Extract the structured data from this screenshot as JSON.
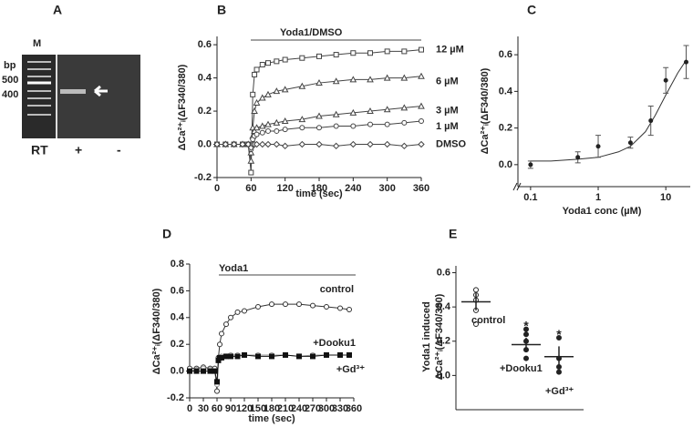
{
  "gel": {
    "panel": "A",
    "lane_marker": "M",
    "unit": "bp",
    "sizes": [
      500,
      400
    ],
    "row_label": "RT",
    "lanes": [
      "+",
      "-"
    ]
  },
  "chart_data": [
    {
      "panel": "B",
      "type": "line",
      "treatment": "Yoda1/DMSO",
      "xlabel": "time (sec)",
      "ylabel": "ΔCa²⁺ᵢ(ΔF340/380)",
      "x": [
        0,
        15,
        30,
        45,
        55,
        60,
        63,
        66,
        70,
        80,
        90,
        105,
        120,
        150,
        180,
        210,
        240,
        270,
        300,
        330,
        360
      ],
      "xlim": [
        0,
        360
      ],
      "xticks": [
        0,
        60,
        120,
        180,
        240,
        300,
        360
      ],
      "ylim": [
        -0.2,
        0.65
      ],
      "yticks": [
        -0.2,
        {
          "value": 0,
          "label": "0.0"
        },
        0.2,
        0.4,
        0.6
      ],
      "series": [
        {
          "name": "12 µM",
          "color": "#444",
          "marker": "square",
          "values": [
            0,
            0,
            0,
            0,
            0,
            -0.17,
            0.3,
            0.42,
            0.45,
            0.48,
            0.49,
            0.5,
            0.51,
            0.52,
            0.53,
            0.54,
            0.55,
            0.55,
            0.56,
            0.56,
            0.57
          ]
        },
        {
          "name": "6 µM",
          "color": "#444",
          "marker": "triangle",
          "values": [
            0,
            0,
            0,
            0,
            0,
            -0.1,
            0.1,
            0.2,
            0.25,
            0.28,
            0.3,
            0.32,
            0.33,
            0.35,
            0.37,
            0.38,
            0.39,
            0.39,
            0.4,
            0.4,
            0.41
          ]
        },
        {
          "name": "3 µM",
          "color": "#444",
          "marker": "triangle",
          "values": [
            0,
            0,
            0,
            0,
            0,
            -0.05,
            0.05,
            0.08,
            0.1,
            0.11,
            0.12,
            0.13,
            0.14,
            0.15,
            0.17,
            0.18,
            0.19,
            0.2,
            0.21,
            0.22,
            0.23
          ]
        },
        {
          "name": "1 µM",
          "color": "#444",
          "marker": "circle",
          "values": [
            0,
            0,
            0,
            0,
            0,
            -0.03,
            0.03,
            0.05,
            0.06,
            0.07,
            0.08,
            0.08,
            0.09,
            0.1,
            0.1,
            0.11,
            0.11,
            0.12,
            0.12,
            0.13,
            0.14
          ]
        },
        {
          "name": "DMSO",
          "color": "#444",
          "marker": "diamond",
          "values": [
            0,
            0,
            0,
            0,
            0,
            -0.02,
            0,
            0,
            0,
            0,
            0,
            0,
            -0.01,
            0,
            0,
            -0.01,
            0,
            0,
            0,
            -0.01,
            0
          ]
        }
      ]
    },
    {
      "panel": "C",
      "type": "scatter",
      "xscale": "log",
      "xlabel": "Yoda1 conc (µM)",
      "ylabel": "ΔCa²⁺ᵢ(ΔF340/380)",
      "x": [
        0.1,
        0.5,
        1,
        3,
        6,
        10,
        20
      ],
      "values": [
        0,
        0.04,
        0.1,
        0.12,
        0.24,
        0.46,
        0.56
      ],
      "errors": [
        0.02,
        0.03,
        0.06,
        0.03,
        0.08,
        0.07,
        0.09
      ],
      "fit": {
        "x": [
          0.1,
          0.2,
          0.5,
          1,
          2,
          3,
          5,
          7,
          10,
          15,
          20
        ],
        "values": [
          0.02,
          0.02,
          0.03,
          0.04,
          0.07,
          0.1,
          0.18,
          0.27,
          0.38,
          0.5,
          0.57
        ]
      },
      "xlim": [
        0.065,
        23
      ],
      "xticks": [
        0.1,
        1,
        10
      ],
      "ylim": [
        -0.12,
        0.7
      ],
      "yticks": [
        {
          "value": 0,
          "label": "0.0"
        },
        0.2,
        0.4,
        0.6
      ],
      "color": "#222"
    },
    {
      "panel": "D",
      "type": "line",
      "treatment": "Yoda1",
      "xlabel": "time (sec)",
      "ylabel": "ΔCa²⁺ᵢ(ΔF340/380)",
      "x": [
        0,
        15,
        30,
        45,
        55,
        60,
        63,
        66,
        70,
        80,
        90,
        105,
        120,
        150,
        180,
        210,
        240,
        270,
        300,
        330,
        350
      ],
      "xlim": [
        0,
        360
      ],
      "xticks": [
        0,
        30,
        60,
        90,
        120,
        150,
        180,
        210,
        240,
        270,
        300,
        330,
        360
      ],
      "ylim": [
        -0.2,
        0.8
      ],
      "yticks": [
        -0.2,
        {
          "value": 0,
          "label": "0.0"
        },
        0.2,
        0.4,
        0.6,
        0.8
      ],
      "series": [
        {
          "name": "control",
          "color": "#333",
          "marker": "circle",
          "values": [
            0.02,
            0.02,
            0.03,
            0.02,
            0.02,
            -0.15,
            0.1,
            0.2,
            0.28,
            0.35,
            0.4,
            0.44,
            0.45,
            0.48,
            0.5,
            0.5,
            0.5,
            0.49,
            0.48,
            0.47,
            0.46
          ]
        },
        {
          "name": "+Dooku1",
          "color": "#999",
          "marker": "circle",
          "values": [
            0,
            0.01,
            0.02,
            0.01,
            0,
            -0.1,
            0.08,
            0.1,
            0.11,
            0.11,
            0.12,
            0.12,
            0.12,
            0.12,
            0.12,
            0.12,
            0.11,
            0.12,
            0.12,
            0.12,
            0.12
          ]
        },
        {
          "name": "+Gd³⁺",
          "color": "#111",
          "marker": "square-filled",
          "values": [
            0,
            0,
            0,
            0,
            0,
            -0.08,
            0.08,
            0.1,
            0.1,
            0.11,
            0.11,
            0.11,
            0.12,
            0.11,
            0.11,
            0.12,
            0.11,
            0.11,
            0.12,
            0.12,
            0.12
          ]
        }
      ]
    },
    {
      "panel": "E",
      "type": "dot",
      "ylabel_lines": [
        "Yoda1 induced",
        "ΔCa²⁺ᵢ(ΔF340/380)"
      ],
      "categories": [
        "control",
        "+Dooku1",
        "+Gd³⁺"
      ],
      "values": [
        0.43,
        0.18,
        0.11
      ],
      "errors": [
        0.05,
        0.04,
        0.06
      ],
      "points": [
        [
          0.5,
          0.47,
          0.44,
          0.38,
          0.3
        ],
        [
          0.27,
          0.24,
          0.2,
          0.15,
          0.1
        ],
        [
          0.22,
          0.1,
          0.05,
          0.02
        ]
      ],
      "point_fills": [
        "none",
        "#222",
        "#222"
      ],
      "significance": [
        null,
        "*",
        "*"
      ],
      "ylim": [
        -0.2,
        0.64
      ],
      "yticks": [
        {
          "value": 0,
          "label": "0.0"
        },
        0.2,
        0.4,
        0.6
      ]
    }
  ]
}
